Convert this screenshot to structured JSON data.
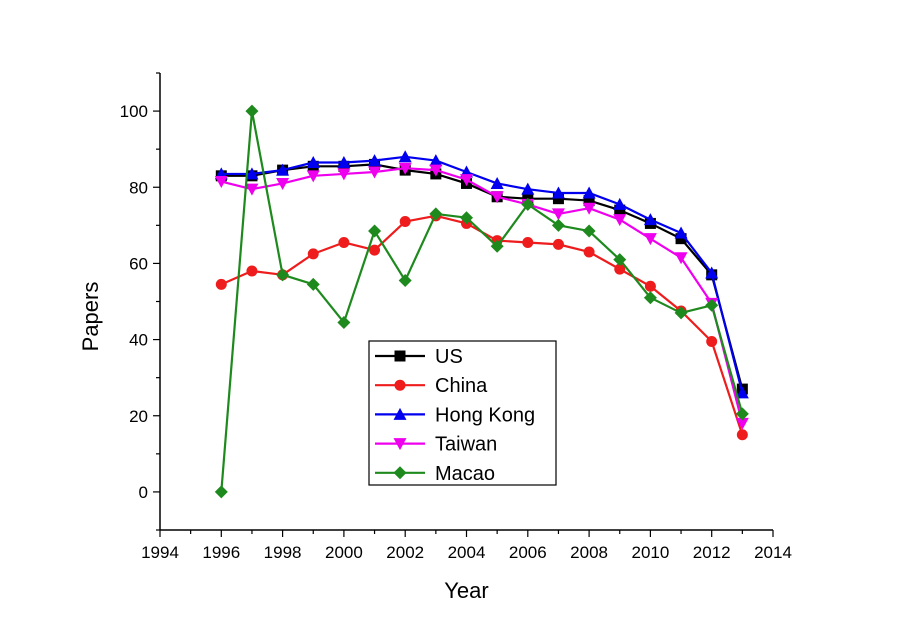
{
  "chart_data": {
    "type": "line",
    "xlabel": "Year",
    "ylabel": "Papers",
    "xlim": [
      1994,
      2014
    ],
    "ylim": [
      -10,
      110
    ],
    "xticks": [
      1994,
      1996,
      1998,
      2000,
      2002,
      2004,
      2006,
      2008,
      2010,
      2012,
      2014
    ],
    "yticks": [
      0,
      20,
      40,
      60,
      80,
      100
    ],
    "grid": false,
    "legend_position": "lower-center",
    "x": [
      1996,
      1997,
      1998,
      1999,
      2000,
      2001,
      2002,
      2003,
      2004,
      2005,
      2006,
      2007,
      2008,
      2009,
      2010,
      2011,
      2012,
      2013
    ],
    "series": [
      {
        "name": "US",
        "color": "#000000",
        "marker": "square",
        "values": [
          83,
          83,
          84.5,
          85.5,
          85.5,
          86,
          84.5,
          83.5,
          81,
          77.5,
          77,
          77,
          76.5,
          74,
          70.5,
          66.5,
          57,
          27
        ]
      },
      {
        "name": "China",
        "color": "#ee1c1c",
        "marker": "circle",
        "values": [
          54.5,
          58,
          57,
          62.5,
          65.5,
          63.5,
          71,
          72.5,
          70.5,
          66,
          65.5,
          65,
          63,
          58.5,
          54,
          47.5,
          39.5,
          15
        ]
      },
      {
        "name": "Hong Kong",
        "color": "#0000ee",
        "marker": "triangle-up",
        "values": [
          83.5,
          83.5,
          84.5,
          86.5,
          86.5,
          87,
          88,
          87,
          84,
          81,
          79.5,
          78.5,
          78.5,
          75.5,
          71.5,
          68,
          57.5,
          26
        ]
      },
      {
        "name": "Taiwan",
        "color": "#ee00ee",
        "marker": "triangle-down",
        "values": [
          81.5,
          79.5,
          81,
          83,
          83.5,
          84,
          85,
          84.5,
          82,
          77.5,
          75.5,
          73,
          74.5,
          71.5,
          66.5,
          61.5,
          49.5,
          18
        ]
      },
      {
        "name": "Macao",
        "color": "#1e8a1e",
        "marker": "diamond",
        "values": [
          0,
          100,
          57,
          54.5,
          44.5,
          68.5,
          55.5,
          73,
          72,
          64.5,
          75.5,
          70,
          68.5,
          61,
          51,
          47,
          49,
          20.5
        ]
      }
    ]
  }
}
